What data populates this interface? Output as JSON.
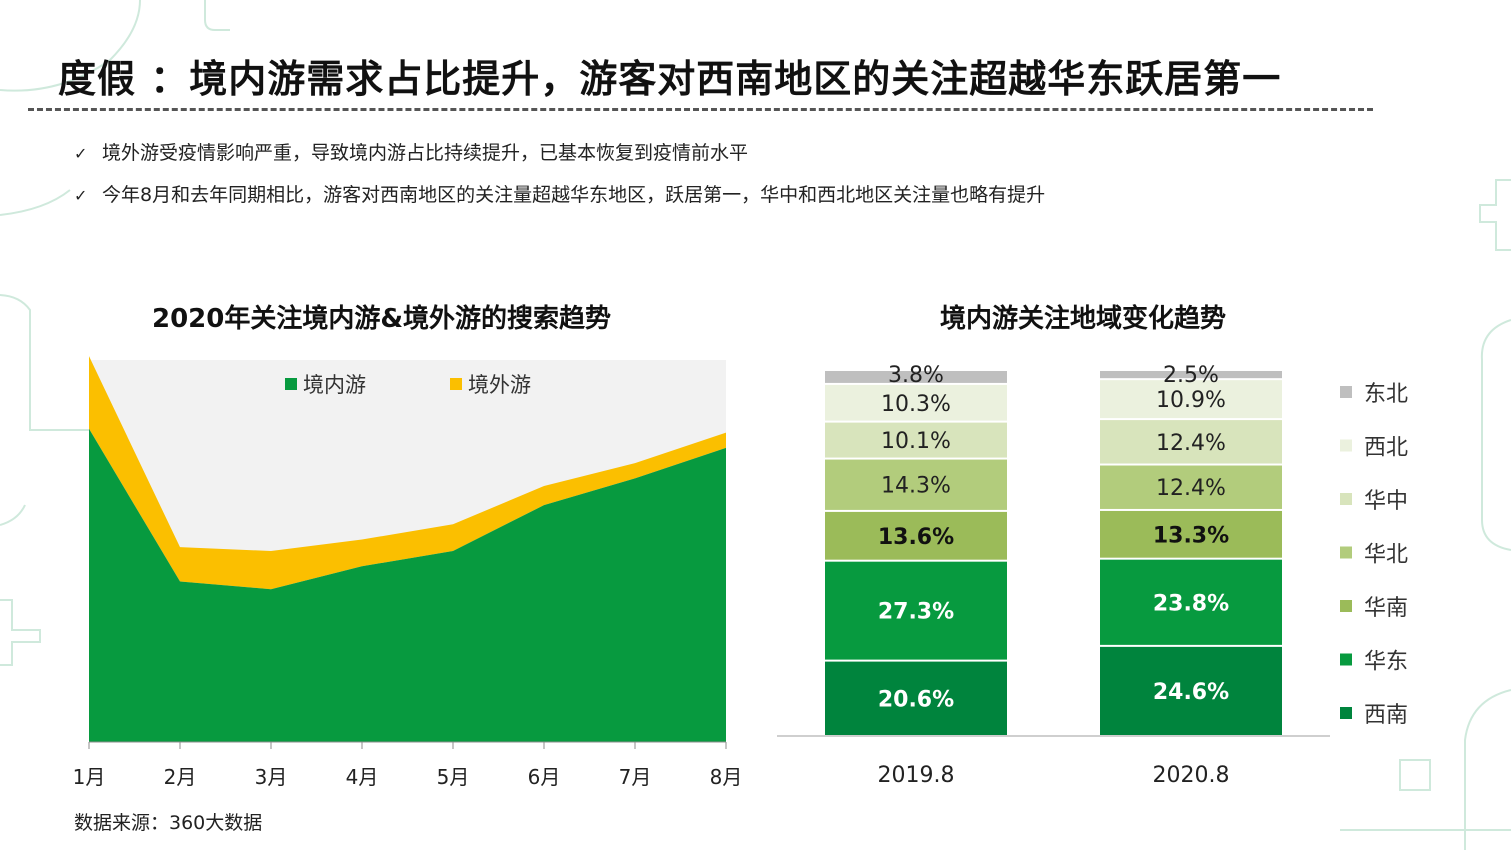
{
  "header": {
    "title": "度假 ：境内游需求占比提升，游客对西南地区的关注超越华东跃居第一",
    "bullets": [
      "境外游受疫情影响严重，导致境内游占比持续提升，已基本恢复到疫情前水平",
      "今年8月和去年同期相比，游客对西南地区的关注量超越华东地区，跃居第一，华中和西北地区关注量也略有提升"
    ],
    "check_glyph": "✓"
  },
  "source": "数据来源：360大数据",
  "colors": {
    "plot_bg": "#f2f2f2",
    "domestic": "#079a3f",
    "foreign": "#fbbf00",
    "dongbei": "#bfbfbf",
    "xibei": "#ebf1de",
    "huazhong": "#d8e4bc",
    "huabei": "#b2cc7c",
    "huanan": "#9bbb59",
    "huadong": "#079a3f",
    "xinan": "#00843d"
  },
  "chart_data": [
    {
      "type": "area",
      "title": "2020年关注境内游&境外游的搜索趋势",
      "categories": [
        "1月",
        "2月",
        "3月",
        "4月",
        "5月",
        "6月",
        "7月",
        "8月"
      ],
      "legend_position": "top",
      "ylim": [
        0,
        100
      ],
      "series": [
        {
          "name": "境内游",
          "color_key": "domestic",
          "values": [
            82,
            42,
            40,
            46,
            50,
            62,
            69,
            77
          ]
        },
        {
          "name": "境外游",
          "color_key": "foreign",
          "values": [
            19,
            9,
            10,
            7,
            7,
            5,
            4,
            4
          ]
        }
      ]
    },
    {
      "type": "bar",
      "stacked": true,
      "percent": true,
      "title": "境内游关注地域变化趋势",
      "categories": [
        "2019.8",
        "2020.8"
      ],
      "legend_position": "right",
      "series": [
        {
          "name": "西南",
          "color_key": "xinan",
          "values": [
            20.6,
            24.6
          ],
          "labels": [
            "20.6%",
            "24.6%"
          ],
          "label_color": "#ffffff",
          "bold": true
        },
        {
          "name": "华东",
          "color_key": "huadong",
          "values": [
            27.3,
            23.8
          ],
          "labels": [
            "27.3%",
            "23.8%"
          ],
          "label_color": "#ffffff",
          "bold": true
        },
        {
          "name": "华南",
          "color_key": "huanan",
          "values": [
            13.6,
            13.3
          ],
          "labels": [
            "13.6%",
            "13.3%"
          ],
          "label_color": "#111111",
          "bold": true
        },
        {
          "name": "华北",
          "color_key": "huabei",
          "values": [
            14.3,
            12.4
          ],
          "labels": [
            "14.3%",
            "12.4%"
          ],
          "label_color": "#222222",
          "bold": false
        },
        {
          "name": "华中",
          "color_key": "huazhong",
          "values": [
            10.1,
            12.4
          ],
          "labels": [
            "10.1%",
            "12.4%"
          ],
          "label_color": "#222222",
          "bold": false
        },
        {
          "name": "西北",
          "color_key": "xibei",
          "values": [
            10.3,
            10.9
          ],
          "labels": [
            "10.3%",
            "10.9%"
          ],
          "label_color": "#222222",
          "bold": false
        },
        {
          "name": "东北",
          "color_key": "dongbei",
          "values": [
            3.8,
            2.5
          ],
          "labels": [
            "3.8%",
            "2.5%"
          ],
          "label_color": "#222222",
          "bold": false
        }
      ]
    }
  ]
}
